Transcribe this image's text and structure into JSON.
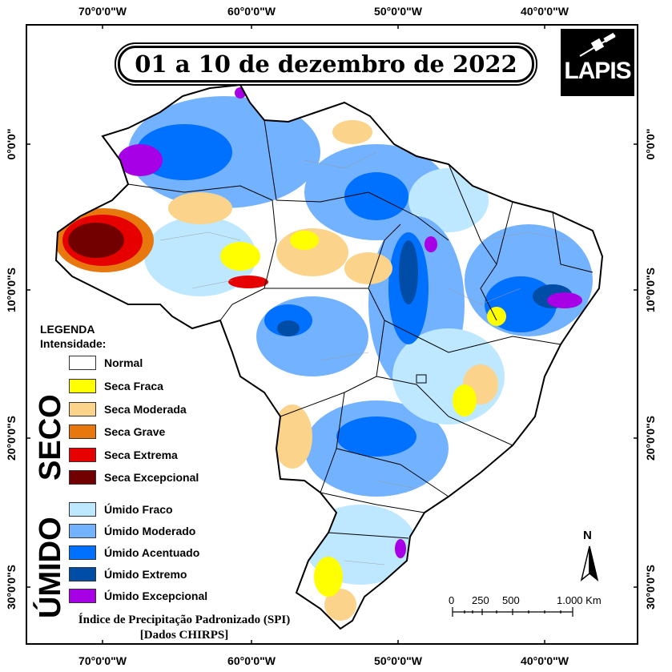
{
  "title": "01 a 10 de dezembro de 2022",
  "logo_text": "LAPIS",
  "coords": {
    "lon": [
      "70°0'0\"W",
      "60°0'0\"W",
      "50°0'0\"W",
      "40°0'0\"W"
    ],
    "lat": [
      "0°0'0\"",
      "10°0'0\"S",
      "20°0'0\"S",
      "30°0'0\"S"
    ]
  },
  "legend": {
    "title": "LEGENDA",
    "subtitle": "Intensidade:",
    "normal": {
      "label": "Normal",
      "color": "#ffffff"
    },
    "seco_label": "SECO",
    "umido_label": "ÚMIDO",
    "seco": [
      {
        "label": "Seca Fraca",
        "color": "#ffff00"
      },
      {
        "label": "Seca Moderada",
        "color": "#fcd38a"
      },
      {
        "label": "Seca Grave",
        "color": "#e8780e"
      },
      {
        "label": "Seca Extrema",
        "color": "#e60000"
      },
      {
        "label": "Seca Excepcional",
        "color": "#730000"
      }
    ],
    "umido": [
      {
        "label": "Úmido Fraco",
        "color": "#bee8ff"
      },
      {
        "label": "Úmido Moderado",
        "color": "#73b2ff"
      },
      {
        "label": "Úmido Acentuado",
        "color": "#0070ff"
      },
      {
        "label": "Úmido Extremo",
        "color": "#004da8"
      },
      {
        "label": "Úmido Excepcional",
        "color": "#a800e6"
      }
    ]
  },
  "caption": {
    "line1": "Índice de Precipitação Padronizado (SPI)",
    "line2": "[Dados CHIRPS]"
  },
  "scale": {
    "ticks": [
      "0",
      "250",
      "500",
      "1.000 Km"
    ]
  },
  "north_label": "N"
}
